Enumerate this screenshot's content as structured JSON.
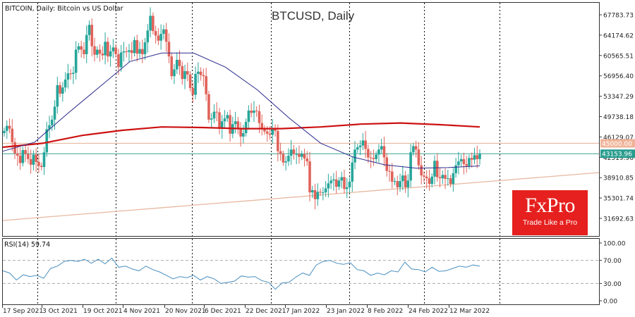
{
  "header": {
    "symbol_description": "BITCOIN, Daily:  Bitcoin vs US Dollar",
    "chart_title": "BTCUSD, Daily"
  },
  "logo": {
    "brand": "FxPro",
    "tagline": "Trade Like a Pro"
  },
  "price_axis": {
    "labels": [
      "67783.73",
      "64174.62",
      "60565.51",
      "56956.40",
      "53347.29",
      "49738.18",
      "46129.07",
      "42519.96",
      "38910.85",
      "35301.74",
      "31692.63"
    ]
  },
  "price_tags": [
    {
      "value": "45000.00",
      "color": "#f0b49a",
      "text_color": "#ffffff"
    },
    {
      "value": "43153.96",
      "color": "#2a9d8f",
      "text_color": "#ffffff"
    }
  ],
  "rsi": {
    "label": "RSI(14) 59.74",
    "axis_labels": [
      "100.00",
      "70.00",
      "30.00",
      "0.00"
    ]
  },
  "date_axis": {
    "labels": [
      "17 Sep 2021",
      "3 Oct 2021",
      "19 Oct 2021",
      "4 Nov 2021",
      "20 Nov 2021",
      "6 Dec 2021",
      "22 Dec 2021",
      "7 Jan 2022",
      "23 Jan 2022",
      "8 Feb 2022",
      "24 Feb 2022",
      "12 Mar 2022"
    ]
  },
  "colors": {
    "bull": "#26a69a",
    "bear": "#e0635a",
    "ma_fast": "#2b2b8c",
    "ma_slow": "#cc1111",
    "level_45000": "#e8b8a0",
    "level_current": "#3aa394",
    "trendline": "#e8b8a0",
    "rsi_line": "#4a90c0",
    "grid": "#000000"
  },
  "chart_data": {
    "type": "candlestick",
    "title": "BTCUSD, Daily",
    "subtitle": "BITCOIN, Daily:  Bitcoin vs US Dollar",
    "xlabel": "",
    "ylabel": "",
    "ylim": [
      30000,
      69500
    ],
    "x_ticks": [
      "17 Sep 2021",
      "3 Oct 2021",
      "19 Oct 2021",
      "4 Nov 2021",
      "20 Nov 2021",
      "6 Dec 2021",
      "22 Dec 2021",
      "7 Jan 2022",
      "23 Jan 2022",
      "8 Feb 2022",
      "24 Feb 2022",
      "12 Mar 2022"
    ],
    "y_ticks": [
      67783.73,
      64174.62,
      60565.51,
      56956.4,
      53347.29,
      49738.18,
      46129.07,
      42519.96,
      38910.85,
      35301.74,
      31692.63
    ],
    "current_price": 43153.96,
    "horizontal_levels": [
      45000.0,
      43153.96
    ],
    "close_series": [
      47200,
      48100,
      47600,
      45200,
      43200,
      42800,
      41500,
      43800,
      43100,
      42200,
      41200,
      43000,
      41700,
      41000,
      40800,
      43400,
      47500,
      48200,
      49200,
      51500,
      55300,
      53800,
      54900,
      56300,
      57400,
      57300,
      57500,
      61600,
      62200,
      61600,
      60800,
      64200,
      66000,
      62200,
      60700,
      61600,
      60900,
      60600,
      63000,
      60400,
      61300,
      62000,
      60800,
      58500,
      61100,
      61300,
      61200,
      61500,
      61000,
      63300,
      60900,
      61700,
      60800,
      62900,
      65000,
      67600,
      64900,
      64100,
      63200,
      64400,
      65200,
      63000,
      60400,
      56900,
      58100,
      59800,
      58700,
      56400,
      57800,
      57200,
      54800,
      53600,
      57300,
      57700,
      57100,
      56900,
      53700,
      49200,
      49400,
      50600,
      50500,
      47600,
      48900,
      49400,
      50000,
      46700,
      48400,
      48900,
      47600,
      46200,
      46800,
      48800,
      50800,
      50400,
      50800,
      50700,
      48600,
      47600,
      47100,
      46700,
      46500,
      47600,
      47200,
      43600,
      43100,
      41600,
      41800,
      42800,
      43900,
      43100,
      43100,
      42600,
      43100,
      42300,
      41800,
      36300,
      36700,
      35100,
      36400,
      36300,
      36300,
      37000,
      37900,
      38400,
      38600,
      37300,
      38400,
      39000,
      36900,
      37200,
      38200,
      41600,
      43900,
      44300,
      44600,
      45500,
      44000,
      42500,
      42400,
      42200,
      43000,
      43900,
      44500,
      42500,
      40100,
      40000,
      38200,
      38300,
      37200,
      38300,
      39300,
      37200,
      38400,
      43400,
      44500,
      43900,
      41100,
      39300,
      39100,
      38800,
      37800,
      39100,
      41900,
      39000,
      38800,
      39400,
      38700,
      38800,
      37800,
      39700,
      41100,
      41800,
      42200,
      41300,
      41000,
      42400,
      42100,
      42900,
      42200,
      43150
    ],
    "series": [
      {
        "name": "Fast MA (blue)",
        "type": "line",
        "approx_values": [
          43600,
          45200,
          50100,
          54800,
          59500,
          61000,
          61000,
          58500,
          54500,
          49500,
          45000,
          42600,
          41200,
          40600,
          40700,
          41000
        ]
      },
      {
        "name": "Slow MA 200 (red)",
        "type": "line",
        "approx_values": [
          44300,
          45000,
          46400,
          47300,
          47900,
          47800,
          47600,
          47600,
          47900,
          48400,
          48600,
          48300,
          47900
        ]
      },
      {
        "name": "Ascending trendline",
        "type": "line",
        "approx_values": [
          32000,
          39600
        ]
      }
    ],
    "rsi": {
      "name": "RSI(14)",
      "last": 59.74,
      "ylim": [
        0,
        100
      ],
      "levels": [
        70,
        30
      ],
      "approx_values": [
        52,
        48,
        36,
        45,
        42,
        44,
        39,
        56,
        60,
        68,
        70,
        68,
        72,
        65,
        72,
        64,
        74,
        58,
        60,
        55,
        52,
        60,
        54,
        50,
        44,
        38,
        42,
        40,
        44,
        36,
        42,
        38,
        30,
        32,
        34,
        43,
        41,
        42,
        35,
        32,
        20,
        31,
        32,
        41,
        48,
        44,
        62,
        68,
        70,
        65,
        63,
        66,
        54,
        52,
        44,
        48,
        45,
        52,
        50,
        67,
        55,
        54,
        50,
        58,
        51,
        52,
        56,
        60,
        58,
        62,
        60
      ]
    }
  }
}
